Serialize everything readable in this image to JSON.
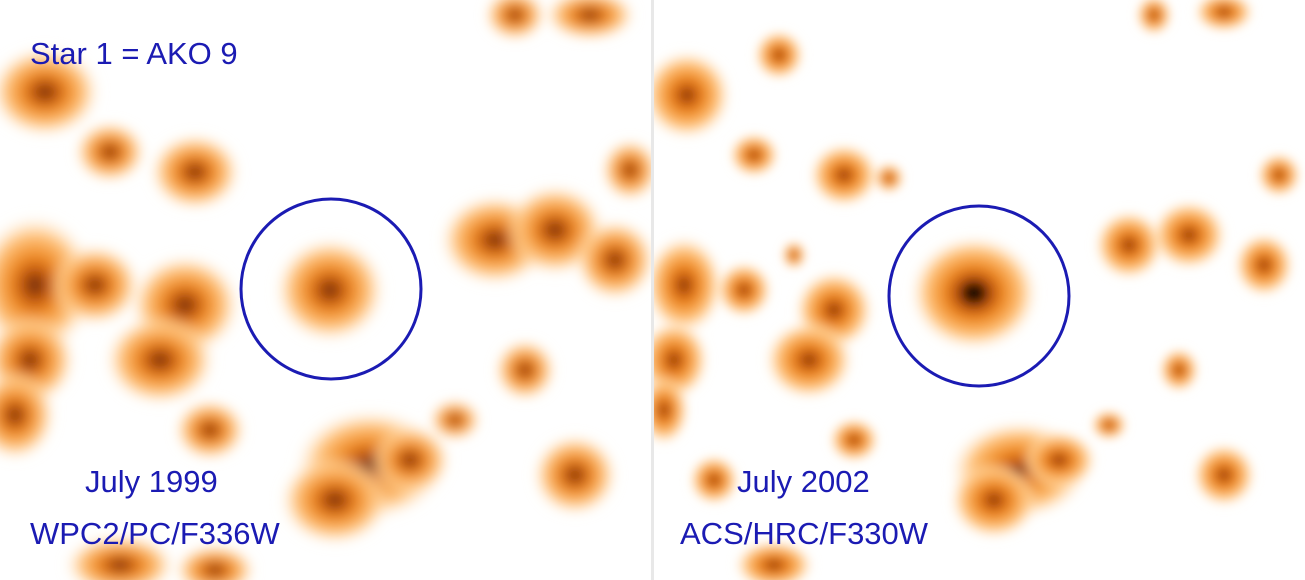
{
  "panels": [
    {
      "id": "left",
      "title": "Star 1 = AKO 9",
      "date": "July 1999",
      "instrument": "WPC2/PC/F336W"
    },
    {
      "id": "right",
      "title": "",
      "date": "July 2002",
      "instrument": "ACS/HRC/F330W"
    }
  ],
  "colors": {
    "label_text": "#1b1bb3",
    "circle_stroke": "#1b1bb3",
    "star_core": "#3a1a08",
    "star_mid": "#e0761a",
    "star_halo": "#ffd9a8",
    "background": "#ffffff"
  }
}
